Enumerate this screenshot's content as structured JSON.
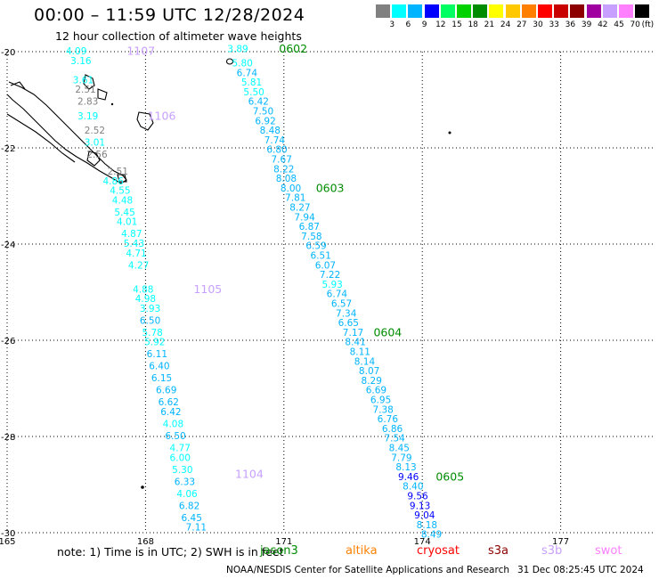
{
  "title": "00:00 – 11:59 UTC 12/28/2024",
  "subtitle": "12 hour collection of altimeter wave heights",
  "color_scale": {
    "unit": "(ft)",
    "colors": [
      "#808080",
      "#00ffff",
      "#00b4ff",
      "#0000ff",
      "#00ff60",
      "#00d200",
      "#008c00",
      "#ffff00",
      "#ffc800",
      "#ff8000",
      "#ff0000",
      "#c80000",
      "#8c0000",
      "#a000a0",
      "#c8a0ff",
      "#ff80ff",
      "#000000"
    ],
    "labels": [
      "3",
      "6",
      "9",
      "12",
      "15",
      "18",
      "21",
      "24",
      "27",
      "30",
      "33",
      "36",
      "39",
      "42",
      "45",
      "70"
    ]
  },
  "axes": {
    "lat_labels": [
      "-20",
      "-22",
      "-24",
      "-26",
      "-28",
      "-30"
    ],
    "lon_labels": [
      "165",
      "168",
      "171",
      "174",
      "177"
    ]
  },
  "passes": [
    {
      "id": "1107",
      "color": "#c8a0ff",
      "label_lat": -20.0,
      "label_lon": 167.9,
      "points": [
        {
          "v": "4.09",
          "c": "#00ffff",
          "lat": -20.0,
          "lon": 166.5
        },
        {
          "v": "3.16",
          "c": "#00ffff",
          "lat": -20.2,
          "lon": 166.6
        },
        {
          "v": "3.61",
          "c": "#00ffff",
          "lat": -20.6,
          "lon": 166.65
        },
        {
          "v": "2.51",
          "c": "#808080",
          "lat": -20.8,
          "lon": 166.7
        },
        {
          "v": "2.83",
          "c": "#808080",
          "lat": -21.05,
          "lon": 166.75
        },
        {
          "v": "3.19",
          "c": "#00ffff",
          "lat": -21.35,
          "lon": 166.75
        },
        {
          "v": "2.52",
          "c": "#808080",
          "lat": -21.65,
          "lon": 166.9
        },
        {
          "v": "3.01",
          "c": "#00ffff",
          "lat": -21.9,
          "lon": 166.9
        },
        {
          "v": "2.56",
          "c": "#808080",
          "lat": -22.15,
          "lon": 166.95
        }
      ]
    },
    {
      "id": "1106",
      "color": "#c8a0ff",
      "label_lat": -21.35,
      "label_lon": 168.35,
      "points": []
    },
    {
      "id": "1105",
      "color": "#c8a0ff",
      "label_lat": -24.95,
      "label_lon": 169.35,
      "points": [
        {
          "v": "2.51",
          "c": "#808080",
          "lat": -22.5,
          "lon": 167.4
        },
        {
          "v": "4.86",
          "c": "#00ffff",
          "lat": -22.7,
          "lon": 167.3
        },
        {
          "v": "4.55",
          "c": "#00ffff",
          "lat": -22.9,
          "lon": 167.45
        },
        {
          "v": "4.48",
          "c": "#00ffff",
          "lat": -23.1,
          "lon": 167.5
        },
        {
          "v": "5.45",
          "c": "#00ffff",
          "lat": -23.35,
          "lon": 167.55
        },
        {
          "v": "4.01",
          "c": "#00ffff",
          "lat": -23.55,
          "lon": 167.6
        },
        {
          "v": "4.87",
          "c": "#00ffff",
          "lat": -23.8,
          "lon": 167.7
        },
        {
          "v": "5.43",
          "c": "#00ffff",
          "lat": -24.0,
          "lon": 167.75
        },
        {
          "v": "4.71",
          "c": "#00ffff",
          "lat": -24.2,
          "lon": 167.8
        },
        {
          "v": "4.27",
          "c": "#00ffff",
          "lat": -24.45,
          "lon": 167.85
        },
        {
          "v": "4.88",
          "c": "#00ffff",
          "lat": -24.95,
          "lon": 167.95
        },
        {
          "v": "4.98",
          "c": "#00ffff",
          "lat": -25.15,
          "lon": 168.0
        },
        {
          "v": "3.93",
          "c": "#00ffff",
          "lat": -25.35,
          "lon": 168.1
        },
        {
          "v": "6.50",
          "c": "#00b4ff",
          "lat": -25.6,
          "lon": 168.1
        },
        {
          "v": "5.78",
          "c": "#00ffff",
          "lat": -25.85,
          "lon": 168.15
        },
        {
          "v": "5.92",
          "c": "#00ffff",
          "lat": -26.05,
          "lon": 168.2
        }
      ]
    },
    {
      "id": "1104",
      "color": "#c8a0ff",
      "label_lat": -28.8,
      "label_lon": 170.25,
      "points": [
        {
          "v": "6.11",
          "c": "#00b4ff",
          "lat": -26.3,
          "lon": 168.25
        },
        {
          "v": "6.40",
          "c": "#00b4ff",
          "lat": -26.55,
          "lon": 168.3
        },
        {
          "v": "6.15",
          "c": "#00b4ff",
          "lat": -26.8,
          "lon": 168.35
        },
        {
          "v": "6.69",
          "c": "#00b4ff",
          "lat": -27.05,
          "lon": 168.45
        },
        {
          "v": "6.62",
          "c": "#00b4ff",
          "lat": -27.3,
          "lon": 168.5
        },
        {
          "v": "6.42",
          "c": "#00b4ff",
          "lat": -27.5,
          "lon": 168.55
        },
        {
          "v": "4.08",
          "c": "#00ffff",
          "lat": -27.75,
          "lon": 168.6
        },
        {
          "v": "6.50",
          "c": "#00b4ff",
          "lat": -28.0,
          "lon": 168.65
        },
        {
          "v": "4.77",
          "c": "#00ffff",
          "lat": -28.25,
          "lon": 168.75
        },
        {
          "v": "6.00",
          "c": "#00ffff",
          "lat": -28.45,
          "lon": 168.75
        },
        {
          "v": "5.30",
          "c": "#00ffff",
          "lat": -28.7,
          "lon": 168.8
        },
        {
          "v": "6.33",
          "c": "#00b4ff",
          "lat": -28.95,
          "lon": 168.85
        },
        {
          "v": "4.06",
          "c": "#00ffff",
          "lat": -29.2,
          "lon": 168.9
        },
        {
          "v": "6.82",
          "c": "#00b4ff",
          "lat": -29.45,
          "lon": 168.95
        },
        {
          "v": "6.45",
          "c": "#00b4ff",
          "lat": -29.7,
          "lon": 169.0
        },
        {
          "v": "7.11",
          "c": "#00b4ff",
          "lat": -29.9,
          "lon": 169.1
        }
      ]
    },
    {
      "id": "0602",
      "color": "#008c00",
      "label_lat": -19.95,
      "label_lon": 171.2,
      "points": [
        {
          "v": "3.89",
          "c": "#00ffff",
          "lat": -19.95,
          "lon": 170.0
        },
        {
          "v": "5.80",
          "c": "#00ffff",
          "lat": -20.25,
          "lon": 170.1
        },
        {
          "v": "6.74",
          "c": "#00b4ff",
          "lat": -20.45,
          "lon": 170.2
        },
        {
          "v": "5.81",
          "c": "#00ffff",
          "lat": -20.65,
          "lon": 170.3
        },
        {
          "v": "5.50",
          "c": "#00ffff",
          "lat": -20.85,
          "lon": 170.35
        },
        {
          "v": "6.42",
          "c": "#00b4ff",
          "lat": -21.05,
          "lon": 170.45
        },
        {
          "v": "7.50",
          "c": "#00b4ff",
          "lat": -21.25,
          "lon": 170.55
        },
        {
          "v": "6.92",
          "c": "#00b4ff",
          "lat": -21.45,
          "lon": 170.6
        },
        {
          "v": "8.48",
          "c": "#00b4ff",
          "lat": -21.65,
          "lon": 170.7
        },
        {
          "v": "7.74",
          "c": "#00b4ff",
          "lat": -21.85,
          "lon": 170.8
        },
        {
          "v": "6.80",
          "c": "#00b4ff",
          "lat": -22.05,
          "lon": 170.85
        },
        {
          "v": "7.67",
          "c": "#00b4ff",
          "lat": -22.25,
          "lon": 170.95
        },
        {
          "v": "8.22",
          "c": "#00b4ff",
          "lat": -22.45,
          "lon": 171.0
        },
        {
          "v": "8.08",
          "c": "#00b4ff",
          "lat": -22.65,
          "lon": 171.05
        }
      ]
    },
    {
      "id": "0603",
      "color": "#008c00",
      "label_lat": -22.85,
      "label_lon": 172.0,
      "points": [
        {
          "v": "8.00",
          "c": "#00b4ff",
          "lat": -22.85,
          "lon": 171.15
        },
        {
          "v": "7.81",
          "c": "#00b4ff",
          "lat": -23.05,
          "lon": 171.25
        },
        {
          "v": "8.27",
          "c": "#00b4ff",
          "lat": -23.25,
          "lon": 171.35
        },
        {
          "v": "7.94",
          "c": "#00b4ff",
          "lat": -23.45,
          "lon": 171.45
        },
        {
          "v": "6.87",
          "c": "#00b4ff",
          "lat": -23.65,
          "lon": 171.55
        },
        {
          "v": "7.58",
          "c": "#00b4ff",
          "lat": -23.85,
          "lon": 171.6
        },
        {
          "v": "6.59",
          "c": "#00b4ff",
          "lat": -24.05,
          "lon": 171.7
        },
        {
          "v": "6.51",
          "c": "#00b4ff",
          "lat": -24.25,
          "lon": 171.8
        },
        {
          "v": "6.07",
          "c": "#00b4ff",
          "lat": -24.45,
          "lon": 171.9
        },
        {
          "v": "7.22",
          "c": "#00b4ff",
          "lat": -24.65,
          "lon": 172.0
        },
        {
          "v": "5.93",
          "c": "#00ffff",
          "lat": -24.85,
          "lon": 172.05
        },
        {
          "v": "6.74",
          "c": "#00b4ff",
          "lat": -25.05,
          "lon": 172.15
        },
        {
          "v": "6.57",
          "c": "#00b4ff",
          "lat": -25.25,
          "lon": 172.25
        },
        {
          "v": "7.34",
          "c": "#00b4ff",
          "lat": -25.45,
          "lon": 172.35
        },
        {
          "v": "6.65",
          "c": "#00b4ff",
          "lat": -25.65,
          "lon": 172.4
        },
        {
          "v": "7.17",
          "c": "#00b4ff",
          "lat": -25.85,
          "lon": 172.5
        }
      ]
    },
    {
      "id": "0604",
      "color": "#008c00",
      "label_lat": -25.85,
      "label_lon": 173.25,
      "points": [
        {
          "v": "8.41",
          "c": "#00b4ff",
          "lat": -26.05,
          "lon": 172.55
        },
        {
          "v": "8.11",
          "c": "#00b4ff",
          "lat": -26.25,
          "lon": 172.65
        },
        {
          "v": "8.14",
          "c": "#00b4ff",
          "lat": -26.45,
          "lon": 172.75
        },
        {
          "v": "8.07",
          "c": "#00b4ff",
          "lat": -26.65,
          "lon": 172.85
        },
        {
          "v": "8.29",
          "c": "#00b4ff",
          "lat": -26.85,
          "lon": 172.9
        },
        {
          "v": "6.69",
          "c": "#00b4ff",
          "lat": -27.05,
          "lon": 173.0
        },
        {
          "v": "6.95",
          "c": "#00b4ff",
          "lat": -27.25,
          "lon": 173.1
        },
        {
          "v": "7.38",
          "c": "#00b4ff",
          "lat": -27.45,
          "lon": 173.15
        },
        {
          "v": "6.76",
          "c": "#00b4ff",
          "lat": -27.65,
          "lon": 173.25
        },
        {
          "v": "6.86",
          "c": "#00b4ff",
          "lat": -27.85,
          "lon": 173.35
        },
        {
          "v": "7.54",
          "c": "#00b4ff",
          "lat": -28.05,
          "lon": 173.4
        },
        {
          "v": "8.45",
          "c": "#00b4ff",
          "lat": -28.25,
          "lon": 173.5
        },
        {
          "v": "7.79",
          "c": "#00b4ff",
          "lat": -28.45,
          "lon": 173.55
        },
        {
          "v": "8.13",
          "c": "#00b4ff",
          "lat": -28.65,
          "lon": 173.65
        }
      ]
    },
    {
      "id": "0605",
      "color": "#008c00",
      "label_lat": -28.85,
      "label_lon": 174.6,
      "points": [
        {
          "v": "9.46",
          "c": "#0000ff",
          "lat": -28.85,
          "lon": 173.7
        },
        {
          "v": "8.40",
          "c": "#00b4ff",
          "lat": -29.05,
          "lon": 173.8
        },
        {
          "v": "9.56",
          "c": "#0000ff",
          "lat": -29.25,
          "lon": 173.9
        },
        {
          "v": "9.13",
          "c": "#0000ff",
          "lat": -29.45,
          "lon": 173.95
        },
        {
          "v": "9.04",
          "c": "#0000ff",
          "lat": -29.65,
          "lon": 174.05
        },
        {
          "v": "8.18",
          "c": "#00b4ff",
          "lat": -29.85,
          "lon": 174.1
        },
        {
          "v": "8.49",
          "c": "#00b4ff",
          "lat": -30.05,
          "lon": 174.2
        }
      ]
    }
  ],
  "note": "note:  1) Time is in UTC;  2) SWH is in feet",
  "satellites": [
    {
      "name": "jason3",
      "color": "#008c00"
    },
    {
      "name": "altika",
      "color": "#ff8000"
    },
    {
      "name": "cryosat",
      "color": "#ff0000"
    },
    {
      "name": "s3a",
      "color": "#8c0000"
    },
    {
      "name": "s3b",
      "color": "#c8a0ff"
    },
    {
      "name": "swot",
      "color": "#ff80ff"
    }
  ],
  "footer": "NOAA/NESDIS Center for Satellite Applications and Research",
  "timestamp": "31 Dec 08:25:45 UTC 2024"
}
